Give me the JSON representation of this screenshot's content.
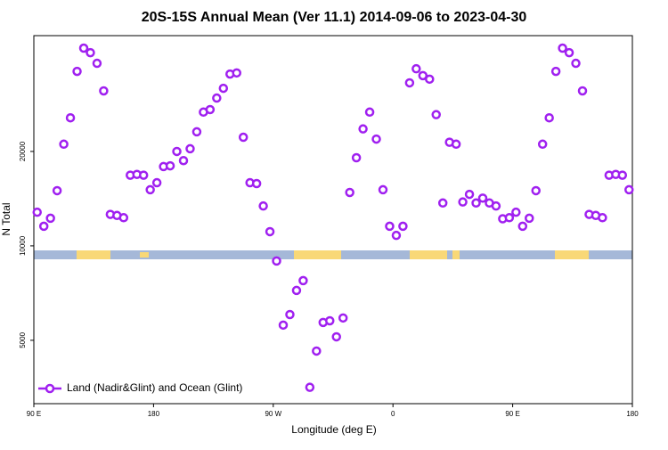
{
  "chart_data": {
    "type": "scatter",
    "title": "20S-15S Annual Mean (Ver 11.1)   2014-09-06 to 2023-04-30",
    "x_label": "Longitude (deg E)",
    "y_label": "N Total",
    "x": [
      92.5,
      97.5,
      102.5,
      107.5,
      112.5,
      117.5,
      122.5,
      127.5,
      132.5,
      137.5,
      142.5,
      147.5,
      152.5,
      157.5,
      162.5,
      167.5,
      172.5,
      177.5,
      182.5,
      187.5,
      192.5,
      197.5,
      202.5,
      207.5,
      212.5,
      217.5,
      222.5,
      227.5,
      232.5,
      237.5,
      242.5,
      247.5,
      252.5,
      257.5,
      262.5,
      267.5,
      272.5,
      277.5,
      282.5,
      287.5,
      292.5,
      297.5,
      302.5,
      307.5,
      312.5,
      317.5,
      322.5,
      327.5,
      332.5,
      337.5,
      342.5,
      347.5,
      352.5,
      357.5,
      362.5,
      367.5,
      372.5,
      377.5,
      382.5,
      387.5,
      392.5,
      397.5,
      402.5,
      407.5,
      412.5,
      417.5,
      422.5,
      427.5,
      432.5,
      437.5,
      442.5,
      447.5,
      452.5,
      457.5,
      462.5,
      467.5,
      472.5,
      477.5,
      482.5,
      487.5,
      492.5,
      497.5,
      502.5,
      507.5,
      512.5,
      517.5,
      522.5,
      527.5,
      532.5,
      537.5
    ],
    "series": [
      {
        "name": "Land (Nadir&Glint) and Ocean (Glint)",
        "color": "#a020f0",
        "values": [
          12800,
          11550,
          12250,
          15000,
          21100,
          25600,
          36000,
          42700,
          41300,
          38200,
          31200,
          12600,
          12500,
          12300,
          16800,
          16900,
          16800,
          15100,
          15900,
          17900,
          18000,
          20000,
          18700,
          20400,
          23100,
          26700,
          27200,
          29600,
          31800,
          35300,
          35600,
          22200,
          15900,
          15800,
          13400,
          11100,
          8950,
          5590,
          6040,
          7210,
          7750,
          3540,
          4620,
          5700,
          5770,
          5130,
          5890,
          14800,
          19100,
          23600,
          26700,
          21900,
          15100,
          11550,
          10800,
          11550,
          33100,
          36700,
          34900,
          34000,
          26200,
          13700,
          21400,
          21100,
          13800,
          14600,
          13700,
          14200,
          13700,
          13400,
          12200,
          12300,
          12800,
          11550,
          12250,
          15000,
          21100,
          25600,
          36000,
          42700,
          41300,
          38200,
          31200,
          12600,
          12500,
          12300,
          16800,
          16900,
          16800,
          15100
        ]
      }
    ],
    "xlim": [
      90,
      540
    ],
    "xticks": [
      {
        "value": 90,
        "label": "90 E"
      },
      180,
      {
        "value": 270,
        "label": "90 W"
      },
      {
        "value": 360,
        "label": "0"
      },
      {
        "value": 450,
        "label": "90 E"
      },
      {
        "value": 540,
        "label": "180"
      }
    ],
    "ylim": [
      3140,
      46800
    ],
    "yticks": [
      5000,
      10000,
      20000
    ],
    "log_y": true,
    "legend": "lower left"
  }
}
